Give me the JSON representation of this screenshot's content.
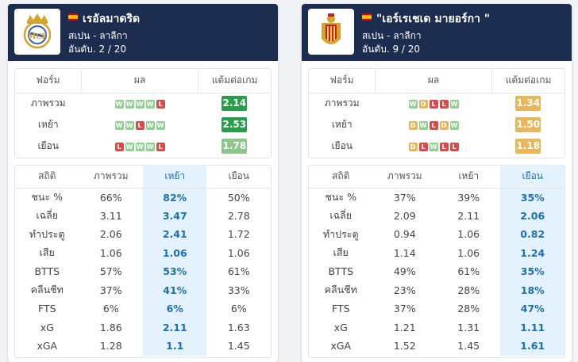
{
  "headers": {
    "form": "ฟอร์ม",
    "result": "ผล",
    "points_per_game": "แต้มต่อเกม",
    "stats": "สถิติ",
    "overall": "ภาพรวม",
    "home": "เหย้า",
    "away": "เยือน"
  },
  "colors": {
    "header_bg": "#1c2d4f",
    "win": "#8fd18e",
    "draw": "#e8b65b",
    "loss": "#d94b4b",
    "highlight": "#e4f2fd"
  },
  "teams": [
    {
      "name": "เรอัลมาดริด",
      "league": "สเปน - ลาลีกา",
      "rank": "อันดับ. 2 / 20",
      "logo": "real-madrid-crest",
      "highlight_col": "home",
      "form_rows": [
        {
          "label": "ภาพรวม",
          "results": [
            "W",
            "W",
            "W",
            "W",
            "L"
          ],
          "ppg": "2.14",
          "ppg_color": "#2a9d4b"
        },
        {
          "label": "เหย้า",
          "results": [
            "W",
            "W",
            "L",
            "W",
            "W"
          ],
          "ppg": "2.53",
          "ppg_color": "#2a9d4b"
        },
        {
          "label": "เยือน",
          "results": [
            "L",
            "W",
            "W",
            "W",
            "L"
          ],
          "ppg": "1.78",
          "ppg_color": "#8bc68a"
        }
      ],
      "stats_rows": [
        {
          "label": "ชนะ %",
          "overall": "66%",
          "home": "82%",
          "away": "50%"
        },
        {
          "label": "เฉลี่ย",
          "overall": "3.11",
          "home": "3.47",
          "away": "2.78"
        },
        {
          "label": "ทำประตู",
          "overall": "2.06",
          "home": "2.41",
          "away": "1.72"
        },
        {
          "label": "เสีย",
          "overall": "1.06",
          "home": "1.06",
          "away": "1.06"
        },
        {
          "label": "BTTS",
          "overall": "57%",
          "home": "53%",
          "away": "61%"
        },
        {
          "label": "คลีนชีท",
          "overall": "37%",
          "home": "41%",
          "away": "33%"
        },
        {
          "label": "FTS",
          "overall": "6%",
          "home": "6%",
          "away": "6%"
        },
        {
          "label": "xG",
          "overall": "1.86",
          "home": "2.11",
          "away": "1.63"
        },
        {
          "label": "xGA",
          "overall": "1.28",
          "home": "1.1",
          "away": "1.45"
        }
      ]
    },
    {
      "name": "\"เอร์เรเชเด มายอร์กา \"",
      "league": "สเปน - ลาลีกา",
      "rank": "อันดับ. 9 / 20",
      "logo": "mallorca-crest",
      "highlight_col": "away",
      "form_rows": [
        {
          "label": "ภาพรวม",
          "results": [
            "W",
            "D",
            "L",
            "L",
            "W"
          ],
          "ppg": "1.34",
          "ppg_color": "#e8b65b"
        },
        {
          "label": "เหย้า",
          "results": [
            "D",
            "W",
            "L",
            "D",
            "W"
          ],
          "ppg": "1.50",
          "ppg_color": "#e8b65b"
        },
        {
          "label": "เยือน",
          "results": [
            "D",
            "L",
            "W",
            "L",
            "L"
          ],
          "ppg": "1.18",
          "ppg_color": "#e8b65b"
        }
      ],
      "stats_rows": [
        {
          "label": "ชนะ %",
          "overall": "37%",
          "home": "39%",
          "away": "35%"
        },
        {
          "label": "เฉลี่ย",
          "overall": "2.09",
          "home": "2.11",
          "away": "2.06"
        },
        {
          "label": "ทำประตู",
          "overall": "0.94",
          "home": "1.06",
          "away": "0.82"
        },
        {
          "label": "เสีย",
          "overall": "1.14",
          "home": "1.06",
          "away": "1.24"
        },
        {
          "label": "BTTS",
          "overall": "49%",
          "home": "61%",
          "away": "35%"
        },
        {
          "label": "คลีนชีท",
          "overall": "23%",
          "home": "28%",
          "away": "18%"
        },
        {
          "label": "FTS",
          "overall": "37%",
          "home": "28%",
          "away": "47%"
        },
        {
          "label": "xG",
          "overall": "1.21",
          "home": "1.31",
          "away": "1.11"
        },
        {
          "label": "xGA",
          "overall": "1.52",
          "home": "1.45",
          "away": "1.61"
        }
      ]
    }
  ]
}
